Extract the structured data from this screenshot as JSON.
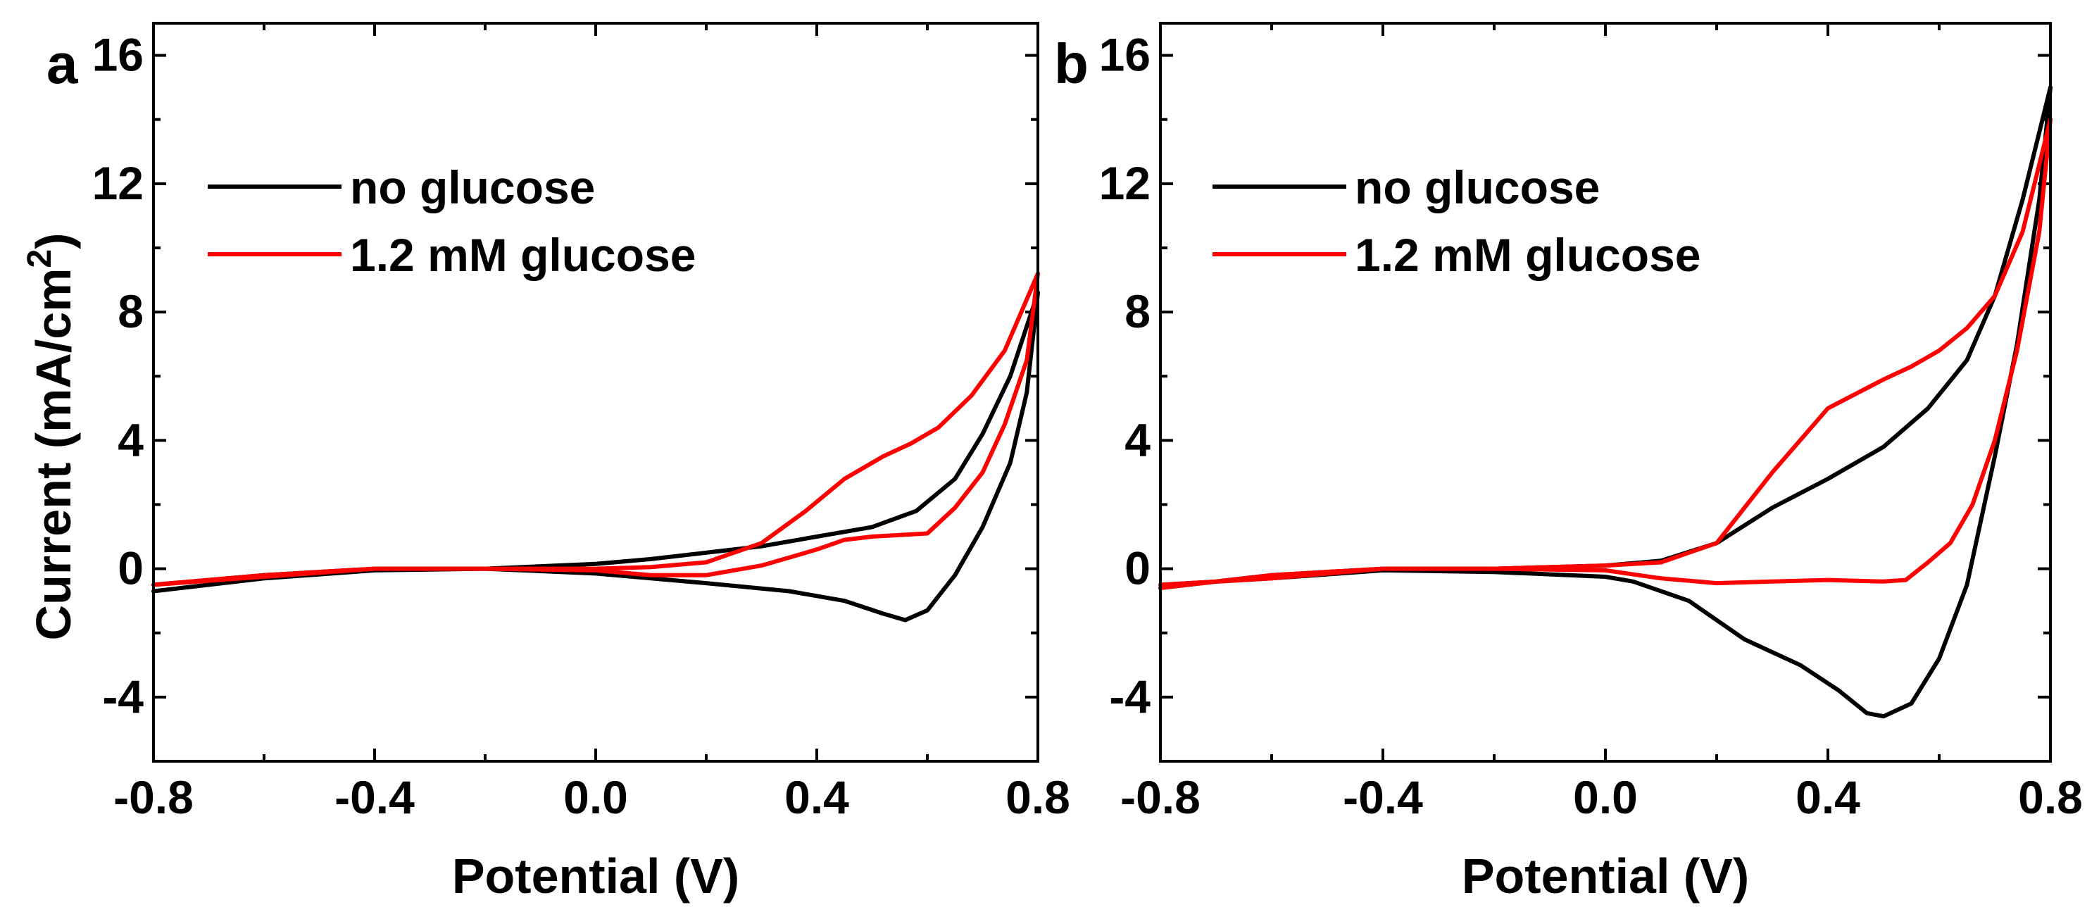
{
  "chart_data": [
    {
      "type": "line",
      "panel_label": "a",
      "xlabel": "Potential (V)",
      "ylabel": "Current (mA/cm",
      "ylabel_superscript": "2",
      "ylabel_close": ")",
      "xlim": [
        -0.8,
        0.8
      ],
      "ylim": [
        -6,
        17
      ],
      "x_ticks": [
        -0.8,
        -0.4,
        0.0,
        0.4,
        0.8
      ],
      "x_tick_labels": [
        "-0.8",
        "-0.4",
        "0.0",
        "0.4",
        "0.8"
      ],
      "y_ticks": [
        -4,
        0,
        4,
        8,
        12,
        16
      ],
      "y_tick_labels": [
        "-4",
        "0",
        "4",
        "8",
        "12",
        "16"
      ],
      "legend": [
        "no glucose",
        "1.2 mM glucose"
      ],
      "series": [
        {
          "name": "no glucose",
          "color": "#000000",
          "x": [
            -0.8,
            -0.6,
            -0.4,
            -0.2,
            0.0,
            0.1,
            0.2,
            0.3,
            0.4,
            0.5,
            0.58,
            0.65,
            0.7,
            0.75,
            0.8,
            0.78,
            0.75,
            0.7,
            0.65,
            0.6,
            0.56,
            0.52,
            0.45,
            0.35,
            0.2,
            0.0,
            -0.2,
            -0.4,
            -0.6,
            -0.8
          ],
          "y": [
            -0.7,
            -0.3,
            -0.05,
            0.0,
            0.15,
            0.3,
            0.5,
            0.7,
            1.0,
            1.3,
            1.8,
            2.8,
            4.2,
            6.0,
            8.6,
            5.5,
            3.3,
            1.3,
            -0.2,
            -1.3,
            -1.6,
            -1.4,
            -1.0,
            -0.7,
            -0.45,
            -0.15,
            0.0,
            0.0,
            -0.2,
            -0.5
          ]
        },
        {
          "name": "1.2 mM glucose",
          "color": "#ff0000",
          "x": [
            -0.8,
            -0.6,
            -0.4,
            -0.2,
            0.0,
            0.1,
            0.2,
            0.3,
            0.38,
            0.45,
            0.52,
            0.57,
            0.62,
            0.68,
            0.74,
            0.8,
            0.78,
            0.74,
            0.7,
            0.65,
            0.6,
            0.55,
            0.5,
            0.45,
            0.4,
            0.3,
            0.2,
            0.1,
            0.0,
            -0.2,
            -0.4,
            -0.6,
            -0.8
          ],
          "y": [
            -0.5,
            -0.25,
            0.0,
            0.0,
            0.0,
            0.05,
            0.2,
            0.8,
            1.8,
            2.8,
            3.5,
            3.9,
            4.4,
            5.4,
            6.8,
            9.2,
            6.5,
            4.5,
            3.0,
            1.9,
            1.1,
            1.05,
            1.0,
            0.9,
            0.6,
            0.1,
            -0.2,
            -0.2,
            -0.05,
            0.0,
            0.0,
            -0.2,
            -0.5
          ]
        }
      ]
    },
    {
      "type": "line",
      "panel_label": "b",
      "xlabel": "Potential (V)",
      "xlim": [
        -0.8,
        0.8
      ],
      "ylim": [
        -6,
        17
      ],
      "x_ticks": [
        -0.8,
        -0.4,
        0.0,
        0.4,
        0.8
      ],
      "x_tick_labels": [
        "-0.8",
        "-0.4",
        "0.0",
        "0.4",
        "0.8"
      ],
      "y_ticks": [
        -4,
        0,
        4,
        8,
        12,
        16
      ],
      "y_tick_labels": [
        "-4",
        "0",
        "4",
        "8",
        "12",
        "16"
      ],
      "legend": [
        "no glucose",
        "1.2 mM glucose"
      ],
      "series": [
        {
          "name": "no glucose",
          "color": "#000000",
          "x": [
            -0.8,
            -0.6,
            -0.4,
            -0.2,
            0.0,
            0.1,
            0.2,
            0.3,
            0.4,
            0.5,
            0.58,
            0.65,
            0.7,
            0.75,
            0.8,
            0.78,
            0.74,
            0.7,
            0.65,
            0.6,
            0.55,
            0.5,
            0.47,
            0.42,
            0.35,
            0.25,
            0.15,
            0.05,
            0.0,
            -0.2,
            -0.4,
            -0.6,
            -0.8
          ],
          "y": [
            -0.6,
            -0.2,
            0.0,
            0.0,
            0.1,
            0.25,
            0.8,
            1.9,
            2.8,
            3.8,
            5.0,
            6.5,
            8.5,
            11.5,
            15.0,
            11.5,
            7.0,
            3.5,
            -0.5,
            -2.8,
            -4.2,
            -4.6,
            -4.5,
            -3.8,
            -3.0,
            -2.2,
            -1.0,
            -0.4,
            -0.25,
            -0.1,
            -0.05,
            -0.3,
            -0.5
          ]
        },
        {
          "name": "1.2 mM glucose",
          "color": "#ff0000",
          "x": [
            -0.8,
            -0.6,
            -0.4,
            -0.2,
            0.0,
            0.1,
            0.2,
            0.3,
            0.4,
            0.5,
            0.55,
            0.6,
            0.65,
            0.7,
            0.75,
            0.8,
            0.78,
            0.74,
            0.7,
            0.66,
            0.62,
            0.58,
            0.54,
            0.5,
            0.4,
            0.3,
            0.2,
            0.1,
            0.0,
            -0.2,
            -0.4,
            -0.6,
            -0.8
          ],
          "y": [
            -0.6,
            -0.2,
            0.0,
            0.0,
            0.1,
            0.2,
            0.8,
            3.0,
            5.0,
            5.9,
            6.3,
            6.8,
            7.5,
            8.5,
            10.5,
            14.0,
            10.5,
            6.8,
            4.0,
            2.0,
            0.8,
            0.2,
            -0.35,
            -0.4,
            -0.35,
            -0.4,
            -0.45,
            -0.3,
            -0.05,
            0.0,
            0.0,
            -0.3,
            -0.5
          ]
        }
      ]
    }
  ]
}
